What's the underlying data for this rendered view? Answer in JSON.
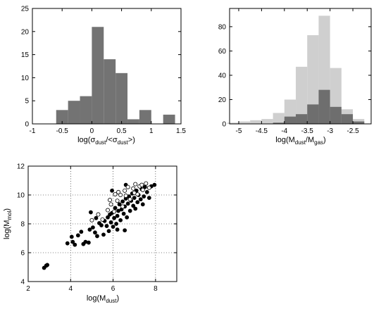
{
  "chart_data": [
    {
      "id": "hist-sigma",
      "type": "bar",
      "histogram": true,
      "xlabel_parts": [
        "log(σ",
        "dust",
        "/<σ",
        "dust",
        ">)"
      ],
      "ylabel": "",
      "xlim": [
        -1,
        1.5
      ],
      "ylim": [
        0,
        25
      ],
      "xticks": [
        -1,
        -0.5,
        0,
        0.5,
        1,
        1.5
      ],
      "yticks": [
        0,
        5,
        10,
        15,
        20,
        25
      ],
      "grid": false,
      "series": [
        {
          "color": "#737373",
          "bins": [
            {
              "from": -0.6,
              "to": -0.4,
              "value": 3
            },
            {
              "from": -0.4,
              "to": -0.2,
              "value": 5
            },
            {
              "from": -0.2,
              "to": 0.0,
              "value": 6
            },
            {
              "from": 0.0,
              "to": 0.2,
              "value": 21
            },
            {
              "from": 0.2,
              "to": 0.4,
              "value": 14
            },
            {
              "from": 0.4,
              "to": 0.6,
              "value": 11
            },
            {
              "from": 0.6,
              "to": 0.8,
              "value": 1
            },
            {
              "from": 0.8,
              "to": 1.0,
              "value": 3
            },
            {
              "from": 1.2,
              "to": 1.4,
              "value": 2
            }
          ]
        }
      ]
    },
    {
      "id": "hist-ratio",
      "type": "bar",
      "histogram": true,
      "xlabel_parts": [
        "log(M",
        "dust",
        "/M",
        "gas",
        ")"
      ],
      "ylabel": "",
      "xlim": [
        -5.2,
        -2.1
      ],
      "ylim": [
        0,
        95
      ],
      "xticks": [
        -5,
        -4.5,
        -4,
        -3.5,
        -3,
        -2.5
      ],
      "yticks": [
        0,
        20,
        40,
        60,
        80
      ],
      "grid": false,
      "series": [
        {
          "color": "#cfcfcf",
          "bins": [
            {
              "from": -5.25,
              "to": -5.0,
              "value": 1
            },
            {
              "from": -5.0,
              "to": -4.75,
              "value": 2
            },
            {
              "from": -4.75,
              "to": -4.5,
              "value": 3
            },
            {
              "from": -4.5,
              "to": -4.25,
              "value": 4
            },
            {
              "from": -4.25,
              "to": -4.0,
              "value": 9
            },
            {
              "from": -4.0,
              "to": -3.75,
              "value": 20
            },
            {
              "from": -3.75,
              "to": -3.5,
              "value": 47
            },
            {
              "from": -3.5,
              "to": -3.25,
              "value": 73
            },
            {
              "from": -3.25,
              "to": -3.0,
              "value": 89
            },
            {
              "from": -3.0,
              "to": -2.75,
              "value": 46
            },
            {
              "from": -2.75,
              "to": -2.5,
              "value": 12
            },
            {
              "from": -2.5,
              "to": -2.25,
              "value": 4
            }
          ]
        },
        {
          "color": "#6e6e6e",
          "bins": [
            {
              "from": -4.25,
              "to": -4.0,
              "value": 1
            },
            {
              "from": -4.0,
              "to": -3.75,
              "value": 6
            },
            {
              "from": -3.75,
              "to": -3.5,
              "value": 8
            },
            {
              "from": -3.5,
              "to": -3.25,
              "value": 16
            },
            {
              "from": -3.25,
              "to": -3.0,
              "value": 28
            },
            {
              "from": -3.0,
              "to": -2.75,
              "value": 14
            },
            {
              "from": -2.75,
              "to": -2.5,
              "value": 8
            },
            {
              "from": -2.5,
              "to": -2.25,
              "value": 2
            }
          ]
        }
      ]
    },
    {
      "id": "scatter-mass",
      "type": "scatter",
      "xlabel_parts": [
        "log(M",
        "dust",
        ")"
      ],
      "ylabel_parts": [
        "log(M",
        "mol",
        ")"
      ],
      "xlim": [
        2,
        9
      ],
      "ylim": [
        4,
        12
      ],
      "xticks": [
        2,
        4,
        6,
        8
      ],
      "yticks": [
        4,
        6,
        8,
        10,
        12
      ],
      "grid": true,
      "series": [
        {
          "marker": "filled",
          "points": [
            [
              2.75,
              4.95
            ],
            [
              2.85,
              5.1
            ],
            [
              2.9,
              5.15
            ],
            [
              3.85,
              6.65
            ],
            [
              4.05,
              7.1
            ],
            [
              4.1,
              6.75
            ],
            [
              4.2,
              6.55
            ],
            [
              4.35,
              7.2
            ],
            [
              4.5,
              7.45
            ],
            [
              4.6,
              6.6
            ],
            [
              4.7,
              6.75
            ],
            [
              4.85,
              6.7
            ],
            [
              4.9,
              7.6
            ],
            [
              5.05,
              7.75
            ],
            [
              5.15,
              7.4
            ],
            [
              5.25,
              7.15
            ],
            [
              5.35,
              8.05
            ],
            [
              5.45,
              7.9
            ],
            [
              5.55,
              7.25
            ],
            [
              5.6,
              8.2
            ],
            [
              5.7,
              7.85
            ],
            [
              5.75,
              8.45
            ],
            [
              5.8,
              7.5
            ],
            [
              5.85,
              8.65
            ],
            [
              5.9,
              8.1
            ],
            [
              5.95,
              8.75
            ],
            [
              6.0,
              7.8
            ],
            [
              6.05,
              8.4
            ],
            [
              6.1,
              9.1
            ],
            [
              6.15,
              8.0
            ],
            [
              6.2,
              8.55
            ],
            [
              6.25,
              8.9
            ],
            [
              6.3,
              9.35
            ],
            [
              6.35,
              8.25
            ],
            [
              6.4,
              9.0
            ],
            [
              6.45,
              9.55
            ],
            [
              6.5,
              8.7
            ],
            [
              6.55,
              9.2
            ],
            [
              6.6,
              9.75
            ],
            [
              6.65,
              8.45
            ],
            [
              6.7,
              9.4
            ],
            [
              6.75,
              9.9
            ],
            [
              6.8,
              8.9
            ],
            [
              6.85,
              9.6
            ],
            [
              6.9,
              10.1
            ],
            [
              6.95,
              9.25
            ],
            [
              7.0,
              9.8
            ],
            [
              7.05,
              9.05
            ],
            [
              7.1,
              10.3
            ],
            [
              7.15,
              9.5
            ],
            [
              7.2,
              10.0
            ],
            [
              7.3,
              9.7
            ],
            [
              7.35,
              10.4
            ],
            [
              7.45,
              9.9
            ],
            [
              7.5,
              10.55
            ],
            [
              7.6,
              10.2
            ],
            [
              7.7,
              9.8
            ],
            [
              7.8,
              10.6
            ],
            [
              7.95,
              10.7
            ],
            [
              6.55,
              7.55
            ],
            [
              6.2,
              7.6
            ],
            [
              7.4,
              9.35
            ],
            [
              5.2,
              8.4
            ],
            [
              4.95,
              8.8
            ],
            [
              5.95,
              10.3
            ],
            [
              6.6,
              10.7
            ]
          ]
        },
        {
          "marker": "open",
          "points": [
            [
              5.0,
              8.25
            ],
            [
              5.3,
              8.65
            ],
            [
              5.5,
              8.3
            ],
            [
              5.75,
              8.95
            ],
            [
              5.9,
              9.35
            ],
            [
              6.05,
              8.85
            ],
            [
              6.2,
              9.6
            ],
            [
              6.35,
              10.0
            ],
            [
              6.45,
              9.2
            ],
            [
              6.55,
              10.3
            ],
            [
              6.7,
              10.55
            ],
            [
              6.8,
              9.7
            ],
            [
              6.95,
              10.45
            ],
            [
              7.05,
              10.75
            ],
            [
              7.15,
              10.05
            ],
            [
              7.25,
              10.6
            ],
            [
              7.4,
              10.35
            ],
            [
              7.55,
              10.8
            ],
            [
              7.7,
              10.5
            ],
            [
              6.25,
              10.2
            ],
            [
              5.85,
              9.65
            ],
            [
              6.6,
              9.95
            ],
            [
              7.0,
              10.15
            ],
            [
              7.35,
              10.7
            ],
            [
              6.1,
              10.05
            ]
          ]
        }
      ]
    }
  ]
}
